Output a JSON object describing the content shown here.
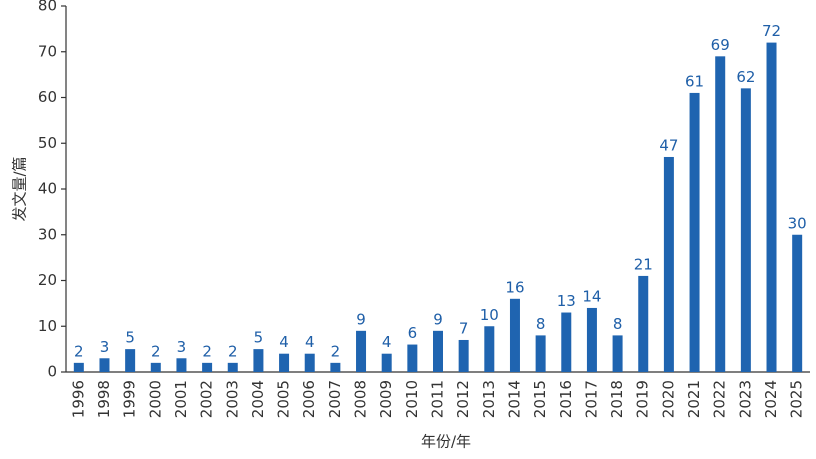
{
  "chart_data": {
    "type": "bar",
    "x_label": "年份/年",
    "y_label": "发文量/篇",
    "categories": [
      "1996",
      "1998",
      "1999",
      "2000",
      "2001",
      "2002",
      "2003",
      "2004",
      "2005",
      "2006",
      "2007",
      "2008",
      "2009",
      "2010",
      "2011",
      "2012",
      "2013",
      "2014",
      "2015",
      "2016",
      "2017",
      "2018",
      "2019",
      "2020",
      "2021",
      "2022",
      "2023",
      "2024",
      "2025"
    ],
    "values": [
      2,
      3,
      5,
      2,
      3,
      2,
      2,
      5,
      4,
      4,
      2,
      9,
      4,
      6,
      9,
      7,
      10,
      16,
      8,
      13,
      14,
      8,
      21,
      47,
      61,
      69,
      62,
      72,
      30
    ],
    "color": "#1f64b0",
    "ylim": [
      0,
      80
    ],
    "yticks": [
      0,
      10,
      20,
      30,
      40,
      50,
      60,
      70,
      80
    ],
    "grid": false
  }
}
